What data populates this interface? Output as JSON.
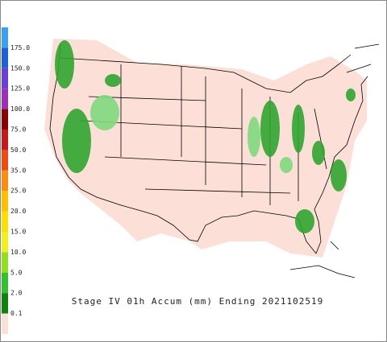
{
  "legend": {
    "items": [
      {
        "label": "175.0",
        "color": "#3aa0f0"
      },
      {
        "label": "150.0",
        "color": "#1f5fd8"
      },
      {
        "label": "125.0",
        "color": "#6a3fd6"
      },
      {
        "label": "100.0",
        "color": "#9a2fb8"
      },
      {
        "label": "75.0",
        "color": "#8b0000"
      },
      {
        "label": "50.0",
        "color": "#c41a1a"
      },
      {
        "label": "35.0",
        "color": "#f04a10"
      },
      {
        "label": "25.0",
        "color": "#ff8c10"
      },
      {
        "label": "20.0",
        "color": "#ffc000"
      },
      {
        "label": "15.0",
        "color": "#ffe000"
      },
      {
        "label": "10.0",
        "color": "#f0f020"
      },
      {
        "label": "5.0",
        "color": "#90e020"
      },
      {
        "label": "2.0",
        "color": "#30c030"
      },
      {
        "label": "0.1",
        "color": "#108010"
      }
    ]
  },
  "caption": "Stage IV 01h Accum (mm) Ending 2021102519"
}
